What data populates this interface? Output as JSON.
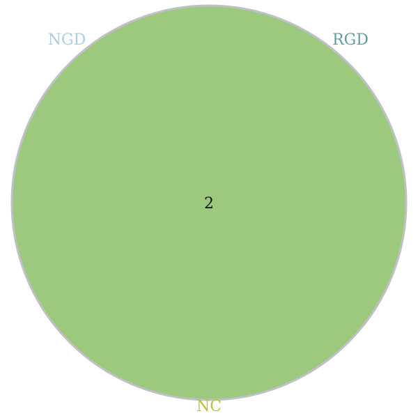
{
  "diagram": {
    "type": "venn",
    "sets": [
      {
        "name": "NGD",
        "color": "#a8cfe0"
      },
      {
        "name": "RGD",
        "color": "#5f9e98"
      },
      {
        "name": "NC",
        "color": "#b5c43a"
      }
    ],
    "regions": [
      {
        "sets": [
          "NGD",
          "RGD",
          "NC"
        ],
        "count": "2"
      }
    ],
    "fill_color": "#9cc97e",
    "outline_color": "#c0c0c8"
  }
}
